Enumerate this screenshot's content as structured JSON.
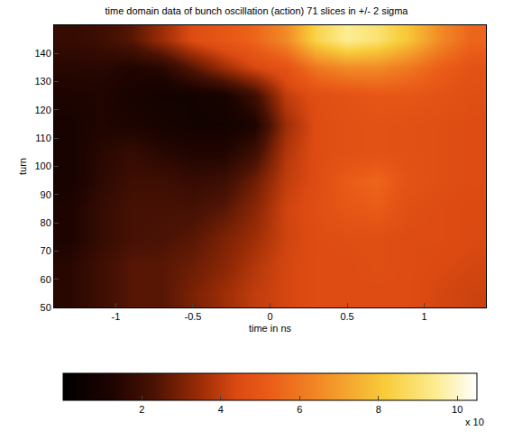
{
  "chart_data": {
    "type": "heatmap",
    "title": "time domain data of bunch oscillation (action) 71 slices in +/- 2 sigma",
    "x_label": "time in ns",
    "y_label": "turn",
    "x": [
      -1.3,
      -1.1,
      -0.9,
      -0.7,
      -0.5,
      -0.3,
      -0.1,
      0.1,
      0.3,
      0.5,
      0.7,
      0.9,
      1.1,
      1.3
    ],
    "y": [
      55,
      65,
      75,
      85,
      95,
      105,
      115,
      125,
      135,
      145
    ],
    "z": [
      [
        1.5,
        2,
        2.5,
        2.5,
        3,
        3.5,
        4,
        4.3,
        4.5,
        4.5,
        4.5,
        4.5,
        4.3,
        4.2
      ],
      [
        1.5,
        2,
        2.5,
        2.5,
        2.8,
        3.2,
        3.8,
        4.3,
        4.5,
        4.5,
        4.6,
        4.5,
        4.4,
        4.3
      ],
      [
        1.2,
        1.8,
        2.2,
        2.3,
        2.5,
        3,
        3.5,
        4.2,
        4.5,
        4.6,
        4.6,
        4.5,
        4.5,
        4.4
      ],
      [
        1.2,
        1.8,
        2.2,
        2.2,
        2.2,
        2.5,
        3.2,
        4.2,
        4.6,
        5,
        5.2,
        4.6,
        4.5,
        4.4
      ],
      [
        1,
        1.6,
        2,
        2,
        1.8,
        2,
        2.8,
        4,
        4.5,
        5.2,
        5.5,
        4.8,
        4.6,
        4.5
      ],
      [
        1,
        1.5,
        1.8,
        1.5,
        1.3,
        1.3,
        2,
        3.8,
        4.5,
        4.7,
        4.8,
        4.7,
        4.6,
        4.5
      ],
      [
        1,
        1.3,
        1.2,
        1,
        0.8,
        0.8,
        1.2,
        3.5,
        4.5,
        4.7,
        4.8,
        4.7,
        4.6,
        4.5
      ],
      [
        1.2,
        1.3,
        1,
        0.8,
        0.8,
        1,
        2,
        4,
        4.6,
        4.8,
        5,
        5,
        4.8,
        4.6
      ],
      [
        1.5,
        1.5,
        1.3,
        1.5,
        2.5,
        3.5,
        4.3,
        4.8,
        6,
        6.5,
        6.5,
        6,
        5.3,
        4.8
      ],
      [
        1.8,
        2,
        2.5,
        3.5,
        4.5,
        5,
        5.5,
        6.5,
        8.5,
        9.5,
        9,
        8,
        6.5,
        5.5
      ]
    ],
    "xlim": [
      -1.4,
      1.4
    ],
    "xticks": [
      -1,
      -0.5,
      0,
      0.5,
      1
    ],
    "ylim": [
      50,
      150
    ],
    "yticks": [
      50,
      60,
      70,
      80,
      90,
      100,
      110,
      120,
      130,
      140
    ],
    "colorbar": {
      "range": [
        0,
        10.5
      ],
      "ticks": [
        2,
        4,
        6,
        8,
        10
      ],
      "label": "x 10"
    }
  }
}
